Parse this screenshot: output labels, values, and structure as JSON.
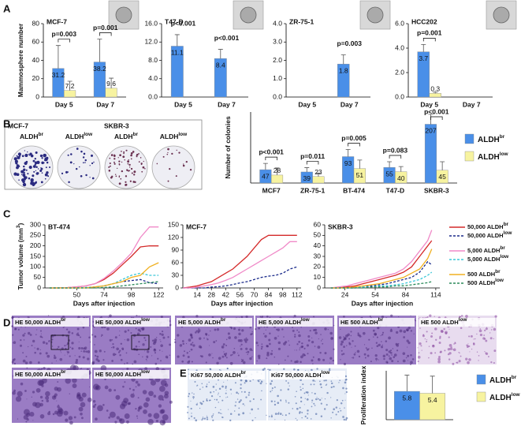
{
  "panel_labels": [
    "A",
    "B",
    "C",
    "D",
    "E"
  ],
  "chart_data": [
    {
      "type": "bar",
      "title": "MCF-7",
      "y_label": "Mammosphere number",
      "categories": [
        "Day 5",
        "Day 7"
      ],
      "series": [
        {
          "color": "#4a8fe8",
          "values": [
            31.2,
            38.2
          ],
          "errors": [
            25,
            25
          ]
        },
        {
          "color": "#f7f3a0",
          "values": [
            7.2,
            9.6
          ],
          "errors": [
            10,
            11
          ]
        }
      ],
      "ylim": [
        0,
        80
      ],
      "yticks": [
        0,
        20,
        40,
        60,
        80
      ],
      "annotations": [
        "p=0.003",
        "p=0.001"
      ]
    },
    {
      "type": "bar",
      "title": "T47-D",
      "categories": [
        "Day 5",
        "Day 7"
      ],
      "series": [
        {
          "color": "#4a8fe8",
          "values": [
            11.1,
            8.4
          ],
          "errors": [
            2.5,
            2
          ]
        },
        {
          "color": "#f7f3a0",
          "values": [
            null,
            null
          ],
          "errors": [
            null,
            null
          ]
        }
      ],
      "ylim": [
        0,
        16
      ],
      "yticks": [
        {
          "value": 0,
          "label": "0.0"
        },
        {
          "value": 4,
          "label": "4.0"
        },
        {
          "value": 8,
          "label": "8.0"
        },
        {
          "value": 12,
          "label": "12.0"
        },
        {
          "value": 16,
          "label": "16.0"
        }
      ],
      "annotations": [
        "p<0.001",
        "p<0.001"
      ]
    },
    {
      "type": "bar",
      "title": "ZR-75-1",
      "categories": [
        "Day 5",
        "Day 7"
      ],
      "series": [
        {
          "color": "#4a8fe8",
          "values": [
            null,
            1.8
          ],
          "errors": [
            null,
            0.5
          ]
        },
        {
          "color": "#f7f3a0",
          "values": [
            null,
            null
          ],
          "errors": [
            null,
            null
          ]
        }
      ],
      "ylim": [
        0,
        4
      ],
      "yticks": [
        {
          "value": 0,
          "label": "0.0"
        },
        {
          "value": 1,
          "label": "1.0"
        },
        {
          "value": 2,
          "label": "2.0"
        },
        {
          "value": 3,
          "label": "3.0"
        },
        {
          "value": 4,
          "label": "4.0"
        }
      ],
      "annotations": [
        null,
        "p=0.003"
      ]
    },
    {
      "type": "bar",
      "title": "HCC202",
      "categories": [
        "Day 5",
        "Day 7"
      ],
      "series": [
        {
          "color": "#4a8fe8",
          "values": [
            3.7,
            null
          ],
          "errors": [
            0.6,
            null
          ]
        },
        {
          "color": "#f7f3a0",
          "values": [
            0.3,
            null
          ],
          "errors": [
            0.1,
            null
          ]
        }
      ],
      "ylim": [
        0,
        6
      ],
      "yticks": [
        {
          "value": 0,
          "label": "0.0"
        },
        {
          "value": 2,
          "label": "2.0"
        },
        {
          "value": 4,
          "label": "4.0"
        },
        {
          "value": 6,
          "label": "6.0"
        }
      ],
      "annotations": [
        "p=0.001",
        null
      ]
    },
    {
      "type": "bar",
      "y_label": "Number of colonies",
      "categories": [
        "MCF7",
        "ZR-75-1",
        "BT-474",
        "T47-D",
        "SKBR-3"
      ],
      "series": [
        {
          "name": "ALDH",
          "superscript": "br",
          "color": "#4a8fe8",
          "values": [
            47,
            39,
            93,
            55,
            207
          ],
          "errors": [
            22,
            15,
            25,
            20,
            35
          ]
        },
        {
          "name": "ALDH",
          "superscript": "low",
          "color": "#f7f3a0",
          "values": [
            28,
            23,
            51,
            40,
            45
          ],
          "errors": [
            25,
            12,
            30,
            18,
            30
          ]
        }
      ],
      "ylim": [
        0,
        250
      ],
      "annotations": [
        "p<0.001",
        "p=0.011",
        "p=0.005",
        "p=0.083",
        "p<0.001"
      ]
    },
    {
      "type": "line",
      "title": "BT-474",
      "y_label": "Tumor volume (mm",
      "y_label_sup": "3",
      "y_label_tail": ")",
      "x_label": "Days after injection",
      "x": [
        26,
        34,
        42,
        50,
        58,
        66,
        74,
        82,
        90,
        98,
        106,
        114,
        122
      ],
      "xlim": [
        22,
        126
      ],
      "xticks": [
        50,
        74,
        98,
        122
      ],
      "ylim": [
        0,
        300
      ],
      "yticks": [
        0,
        50,
        100,
        150,
        200,
        250,
        300
      ],
      "series": [
        {
          "color": "#d42a2a",
          "dashed": false,
          "values": [
            0,
            0,
            2,
            5,
            10,
            20,
            40,
            70,
            110,
            150,
            195,
            200,
            200
          ]
        },
        {
          "color": "#1a2a8a",
          "dashed": true,
          "values": [
            0,
            0,
            0,
            0,
            2,
            5,
            10,
            20,
            30,
            35,
            40,
            25,
            20
          ]
        },
        {
          "color": "#f08ac8",
          "dashed": false,
          "values": [
            0,
            0,
            2,
            5,
            10,
            20,
            45,
            80,
            120,
            165,
            240,
            290,
            290
          ]
        },
        {
          "color": "#3cc8d8",
          "dashed": true,
          "values": [
            0,
            0,
            0,
            0,
            2,
            5,
            10,
            20,
            40,
            60,
            70,
            60,
            60
          ]
        },
        {
          "color": "#f0b020",
          "dashed": false,
          "values": [
            0,
            0,
            0,
            0,
            0,
            5,
            10,
            20,
            30,
            50,
            60,
            100,
            120
          ]
        },
        {
          "color": "#2a8a5a",
          "dashed": true,
          "values": [
            0,
            0,
            0,
            0,
            0,
            0,
            2,
            5,
            10,
            15,
            20,
            25,
            30
          ]
        }
      ]
    },
    {
      "type": "line",
      "title": "MCF-7",
      "x_label": "Days after injection",
      "x": [
        0,
        7,
        14,
        21,
        28,
        35,
        42,
        49,
        56,
        63,
        70,
        77,
        84,
        91,
        98,
        105,
        112
      ],
      "xlim": [
        0,
        116
      ],
      "xticks": [
        14,
        28,
        42,
        56,
        70,
        84,
        98,
        112
      ],
      "ylim": [
        0,
        150
      ],
      "yticks": [
        0,
        30,
        60,
        90,
        120,
        150
      ],
      "series": [
        {
          "color": "#d42a2a",
          "dashed": false,
          "values": [
            0,
            2,
            5,
            10,
            15,
            25,
            35,
            45,
            60,
            75,
            95,
            115,
            125,
            125,
            125,
            125,
            125
          ]
        },
        {
          "color": "#1a2a8a",
          "dashed": true,
          "values": [
            0,
            0,
            0,
            0,
            2,
            3,
            5,
            8,
            12,
            15,
            20,
            25,
            28,
            30,
            35,
            45,
            50
          ]
        },
        {
          "color": "#f08ac8",
          "dashed": false,
          "values": [
            0,
            0,
            2,
            5,
            8,
            12,
            18,
            25,
            35,
            45,
            55,
            65,
            75,
            85,
            95,
            110,
            110
          ]
        }
      ]
    },
    {
      "type": "line",
      "title": "SKBR-3",
      "x_label": "Days after injection",
      "x": [
        10,
        18,
        26,
        34,
        42,
        50,
        58,
        66,
        74,
        82,
        90,
        98,
        106,
        110
      ],
      "xlim": [
        4,
        118
      ],
      "xticks": [
        24,
        54,
        84,
        114
      ],
      "ylim": [
        0,
        60
      ],
      "yticks": [
        0,
        10,
        20,
        30,
        40,
        50,
        60
      ],
      "series": [
        {
          "color": "#d42a2a",
          "dashed": false,
          "values": [
            0,
            0,
            1,
            2,
            4,
            6,
            8,
            10,
            12,
            15,
            20,
            30,
            40,
            45
          ]
        },
        {
          "color": "#1a2a8a",
          "dashed": true,
          "values": [
            0,
            0,
            0,
            0,
            1,
            2,
            3,
            4,
            6,
            8,
            10,
            15,
            25,
            22
          ]
        },
        {
          "color": "#f08ac8",
          "dashed": false,
          "values": [
            0,
            1,
            2,
            4,
            6,
            8,
            10,
            12,
            14,
            18,
            25,
            35,
            45,
            55
          ]
        },
        {
          "color": "#3cc8d8",
          "dashed": true,
          "values": [
            0,
            0,
            0,
            0,
            1,
            1,
            2,
            2,
            3,
            4,
            6,
            8,
            12,
            15
          ]
        },
        {
          "color": "#f0b020",
          "dashed": false,
          "values": [
            0,
            0,
            0,
            1,
            2,
            3,
            4,
            6,
            8,
            10,
            14,
            18,
            28,
            37
          ]
        },
        {
          "color": "#2a8a5a",
          "dashed": true,
          "values": [
            0,
            0,
            0,
            0,
            0,
            1,
            1,
            1,
            2,
            2,
            3,
            4,
            5,
            6
          ]
        }
      ]
    },
    {
      "type": "bar",
      "y_label": "Proliferation index",
      "categories": [
        null
      ],
      "series": [
        {
          "name": "ALDH",
          "superscript": "br",
          "color": "#4a8fe8",
          "values": [
            5.8
          ],
          "errors": [
            3.3
          ]
        },
        {
          "name": "ALDH",
          "superscript": "low",
          "color": "#f7f3a0",
          "values": [
            5.4
          ],
          "errors": [
            3.5
          ]
        }
      ],
      "ylim": [
        0,
        10
      ]
    }
  ],
  "c_legend": [
    {
      "label": "50,000 ALDH",
      "sup": "br",
      "color": "#d42a2a",
      "dashed": false
    },
    {
      "label": "50,000 ALDH",
      "sup": "low",
      "color": "#1a2a8a",
      "dashed": true
    },
    {
      "label": "5,000 ALDH",
      "sup": "br",
      "color": "#f08ac8",
      "dashed": false
    },
    {
      "label": "5,000 ALDH",
      "sup": "low",
      "color": "#3cc8d8",
      "dashed": true
    },
    {
      "label": "500 ALDH",
      "sup": "br",
      "color": "#f0b020",
      "dashed": false
    },
    {
      "label": "500 ALDH",
      "sup": "low",
      "color": "#2a8a5a",
      "dashed": true
    }
  ],
  "dishes": {
    "titles": [
      "MCF-7",
      "SKBR-3"
    ],
    "labels": [
      {
        "label": "ALDH",
        "sup": "br"
      },
      {
        "label": "ALDH",
        "sup": "low"
      },
      {
        "label": "ALDH",
        "sup": "br"
      },
      {
        "label": "ALDH",
        "sup": "low"
      }
    ]
  },
  "histology": [
    {
      "label": "HE 50,000 ALDH",
      "sup": "br"
    },
    {
      "label": "HE 50,000 ALDH",
      "sup": "low"
    },
    {
      "label": "HE 5,000 ALDH",
      "sup": "br"
    },
    {
      "label": "HE 5,000 ALDH",
      "sup": "low"
    },
    {
      "label": "HE 500 ALDH",
      "sup": "br"
    },
    {
      "label": "HE 500 ALDH",
      "sup": "low"
    },
    {
      "label": "HE 50,000 ALDH",
      "sup": "br"
    },
    {
      "label": "HE 50,000 ALDH",
      "sup": "low"
    },
    {
      "label": "Ki67 50,000 ALDH",
      "sup": "br"
    },
    {
      "label": "Ki67 50,000 ALDH",
      "sup": "low"
    }
  ]
}
